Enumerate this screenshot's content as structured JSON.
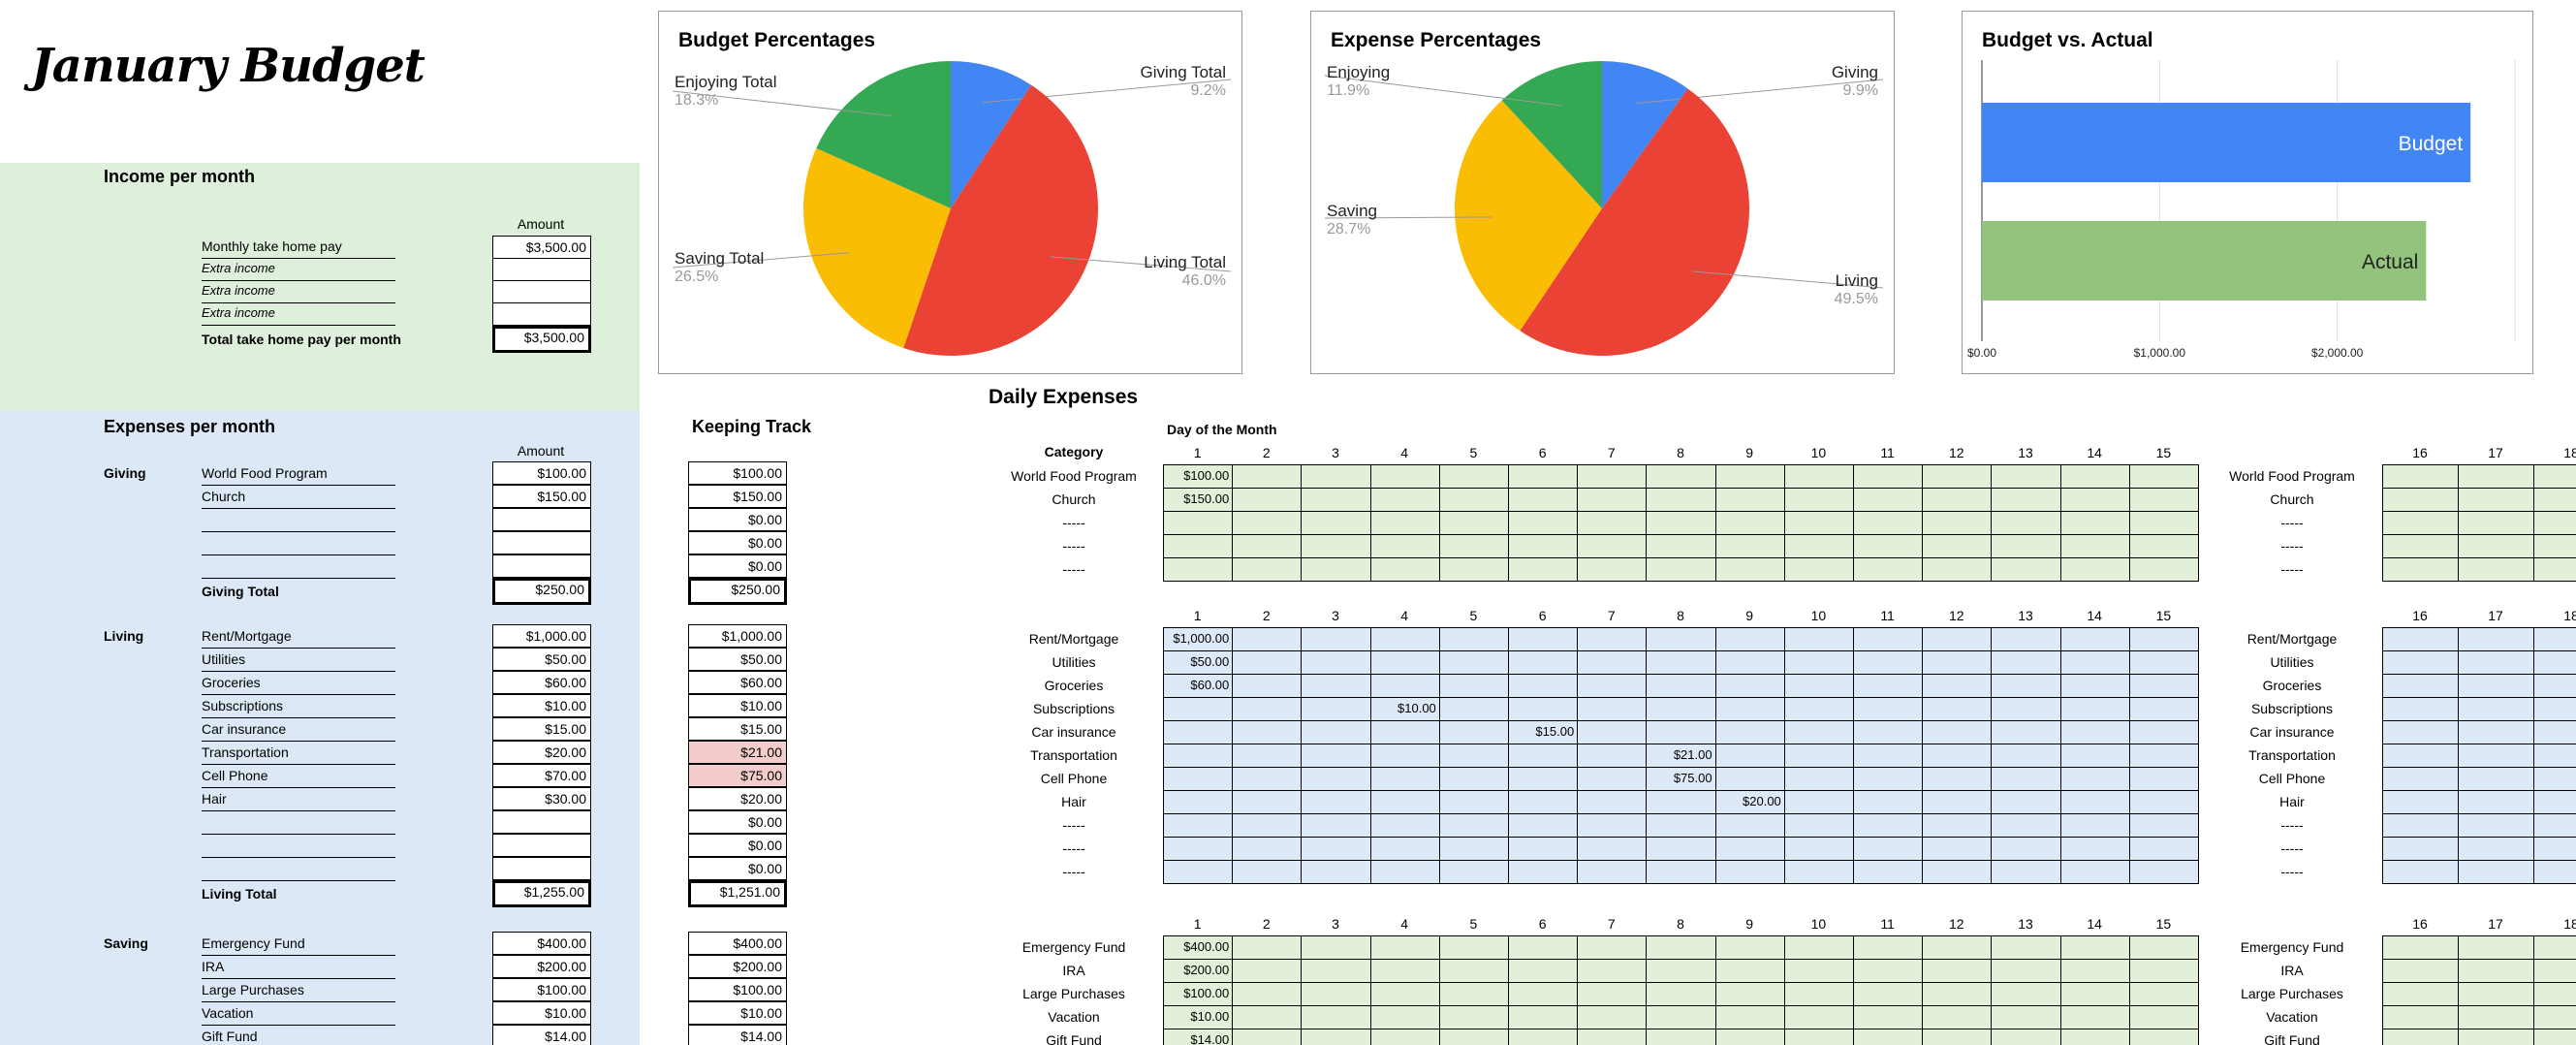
{
  "title": "January Budget",
  "colors": {
    "green_band": "#deefdb",
    "blue_band": "#dce8f5",
    "pie_blue": "#4285f4",
    "pie_red": "#ea4335",
    "pie_yellow": "#fbbc04",
    "pie_green": "#34a853",
    "bar_budget": "#4285f4",
    "bar_actual": "#93c47d",
    "pink": "#f4cccc"
  },
  "income": {
    "heading": "Income per month",
    "amount_header": "Amount",
    "rows": [
      {
        "label": "Monthly take home pay",
        "value": "$3,500.00",
        "italic": false
      },
      {
        "label": "Extra income",
        "value": "",
        "italic": true
      },
      {
        "label": "Extra income",
        "value": "",
        "italic": true
      },
      {
        "label": "Extra income",
        "value": "",
        "italic": true
      }
    ],
    "total_label": "Total take home pay per month",
    "total_value": "$3,500.00"
  },
  "expenses": {
    "heading": "Expenses per month",
    "amount_header": "Amount",
    "keeping_track_heading": "Keeping Track"
  },
  "groups": [
    {
      "name": "Giving",
      "total_label": "Giving Total",
      "total": "$250.00",
      "track_total": "$250.00",
      "rows": [
        {
          "label": "World Food Program",
          "amount": "$100.00",
          "track": "$100.00",
          "pink": false
        },
        {
          "label": "Church",
          "amount": "$150.00",
          "track": "$150.00",
          "pink": false
        },
        {
          "label": "",
          "amount": "",
          "track": "$0.00",
          "pink": false
        },
        {
          "label": "",
          "amount": "",
          "track": "$0.00",
          "pink": false
        },
        {
          "label": "",
          "amount": "",
          "track": "$0.00",
          "pink": false
        }
      ]
    },
    {
      "name": "Living",
      "total_label": "Living Total",
      "total": "$1,255.00",
      "track_total": "$1,251.00",
      "rows": [
        {
          "label": "Rent/Mortgage",
          "amount": "$1,000.00",
          "track": "$1,000.00",
          "pink": false
        },
        {
          "label": "Utilities",
          "amount": "$50.00",
          "track": "$50.00",
          "pink": false
        },
        {
          "label": "Groceries",
          "amount": "$60.00",
          "track": "$60.00",
          "pink": false
        },
        {
          "label": "Subscriptions",
          "amount": "$10.00",
          "track": "$10.00",
          "pink": false
        },
        {
          "label": "Car insurance",
          "amount": "$15.00",
          "track": "$15.00",
          "pink": false
        },
        {
          "label": "Transportation",
          "amount": "$20.00",
          "track": "$21.00",
          "pink": true
        },
        {
          "label": "Cell Phone",
          "amount": "$70.00",
          "track": "$75.00",
          "pink": true
        },
        {
          "label": "Hair",
          "amount": "$30.00",
          "track": "$20.00",
          "pink": false
        },
        {
          "label": "",
          "amount": "",
          "track": "$0.00",
          "pink": false
        },
        {
          "label": "",
          "amount": "",
          "track": "$0.00",
          "pink": false
        },
        {
          "label": "",
          "amount": "",
          "track": "$0.00",
          "pink": false
        }
      ]
    },
    {
      "name": "Saving",
      "total_label": "",
      "total": "",
      "track_total": "",
      "rows": [
        {
          "label": "Emergency Fund",
          "amount": "$400.00",
          "track": "$400.00",
          "pink": false
        },
        {
          "label": "IRA",
          "amount": "$200.00",
          "track": "$200.00",
          "pink": false
        },
        {
          "label": "Large Purchases",
          "amount": "$100.00",
          "track": "$100.00",
          "pink": false
        },
        {
          "label": "Vacation",
          "amount": "$10.00",
          "track": "$10.00",
          "pink": false
        },
        {
          "label": "Gift Fund",
          "amount": "$14.00",
          "track": "$14.00",
          "pink": false
        }
      ]
    }
  ],
  "daily": {
    "heading": "Daily Expenses",
    "day_of_month": "Day of the Month",
    "category_header": "Category",
    "days_left": [
      "1",
      "2",
      "3",
      "4",
      "5",
      "6",
      "7",
      "8",
      "9",
      "10",
      "11",
      "12",
      "13",
      "14",
      "15"
    ],
    "days_right": [
      "16",
      "17",
      "18"
    ],
    "sections": [
      {
        "rows": [
          {
            "cat": "World Food Program",
            "entries": {
              "1": "$100.00"
            }
          },
          {
            "cat": "Church",
            "entries": {
              "1": "$150.00"
            }
          },
          {
            "cat": "-----",
            "entries": {}
          },
          {
            "cat": "-----",
            "entries": {}
          },
          {
            "cat": "-----",
            "entries": {}
          }
        ]
      },
      {
        "rows": [
          {
            "cat": "Rent/Mortgage",
            "entries": {
              "1": "$1,000.00"
            }
          },
          {
            "cat": "Utilities",
            "entries": {
              "1": "$50.00"
            }
          },
          {
            "cat": "Groceries",
            "entries": {
              "1": "$60.00"
            }
          },
          {
            "cat": "Subscriptions",
            "entries": {
              "4": "$10.00"
            }
          },
          {
            "cat": "Car insurance",
            "entries": {
              "6": "$15.00"
            }
          },
          {
            "cat": "Transportation",
            "entries": {
              "8": "$21.00"
            }
          },
          {
            "cat": "Cell Phone",
            "entries": {
              "8": "$75.00"
            }
          },
          {
            "cat": "Hair",
            "entries": {
              "9": "$20.00"
            }
          },
          {
            "cat": "-----",
            "entries": {}
          },
          {
            "cat": "-----",
            "entries": {}
          },
          {
            "cat": "-----",
            "entries": {}
          }
        ]
      },
      {
        "rows": [
          {
            "cat": "Emergency Fund",
            "entries": {
              "1": "$400.00"
            }
          },
          {
            "cat": "IRA",
            "entries": {
              "1": "$200.00"
            }
          },
          {
            "cat": "Large Purchases",
            "entries": {
              "1": "$100.00"
            }
          },
          {
            "cat": "Vacation",
            "entries": {
              "1": "$10.00"
            }
          },
          {
            "cat": "Gift Fund",
            "entries": {
              "1": "$14.00"
            }
          }
        ]
      }
    ]
  },
  "chart_data": [
    {
      "type": "pie",
      "title": "Budget Percentages",
      "labels": [
        "Giving Total",
        "Living Total",
        "Saving Total",
        "Enjoying Total"
      ],
      "values": [
        9.2,
        46.0,
        26.5,
        18.3
      ],
      "value_labels": [
        "9.2%",
        "46.0%",
        "26.5%",
        "18.3%"
      ],
      "colors": [
        "#4285f4",
        "#ea4335",
        "#fbbc04",
        "#34a853"
      ]
    },
    {
      "type": "pie",
      "title": "Expense Percentages",
      "labels": [
        "Giving",
        "Living",
        "Saving",
        "Enjoying"
      ],
      "values": [
        9.9,
        49.5,
        28.7,
        11.9
      ],
      "value_labels": [
        "9.9%",
        "49.5%",
        "28.7%",
        "11.9%"
      ],
      "colors": [
        "#4285f4",
        "#ea4335",
        "#fbbc04",
        "#34a853"
      ]
    },
    {
      "type": "bar",
      "orientation": "horizontal",
      "title": "Budget vs. Actual",
      "categories": [
        "Budget",
        "Actual"
      ],
      "values": [
        2750,
        2500
      ],
      "colors": [
        "#4285f4",
        "#93c47d"
      ],
      "xlim": [
        0,
        3000
      ],
      "ticks": [
        "$0.00",
        "$1,000.00",
        "$2,000.00"
      ],
      "grid": true
    }
  ]
}
